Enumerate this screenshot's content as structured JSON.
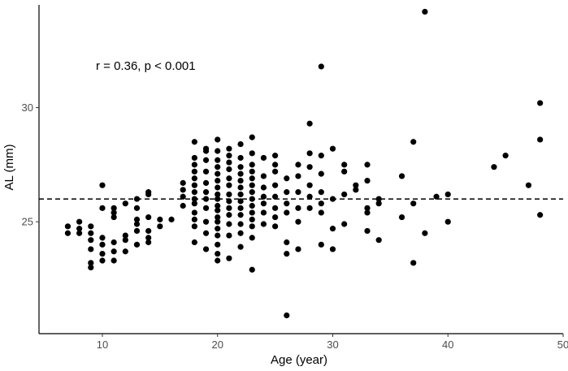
{
  "chart_data": {
    "type": "scatter",
    "title": "",
    "xlabel": "Age (year)",
    "ylabel": "AL (mm)",
    "xlim": [
      4.5,
      50
    ],
    "ylim": [
      20.1,
      34.5
    ],
    "xticks": [
      10,
      20,
      30,
      40,
      50
    ],
    "yticks": [
      25,
      30
    ],
    "xtick_labels": [
      "10",
      "20",
      "30",
      "40",
      "50"
    ],
    "ytick_labels": [
      "25",
      "30"
    ],
    "annotation": "r = 0.36, p < 0.001",
    "reference_line": {
      "y": 26.0,
      "style": "dashed"
    },
    "grid": false,
    "legend": "none",
    "marker_color": "#000000",
    "points": [
      [
        7,
        24.5
      ],
      [
        7,
        24.8
      ],
      [
        8,
        24.5
      ],
      [
        8,
        24.7
      ],
      [
        8,
        25.0
      ],
      [
        9,
        23.0
      ],
      [
        9,
        23.2
      ],
      [
        9,
        23.8
      ],
      [
        9,
        24.2
      ],
      [
        9,
        24.5
      ],
      [
        9,
        24.8
      ],
      [
        10,
        23.3
      ],
      [
        10,
        23.6
      ],
      [
        10,
        24.0
      ],
      [
        10,
        24.3
      ],
      [
        10,
        25.6
      ],
      [
        10,
        26.6
      ],
      [
        11,
        23.3
      ],
      [
        11,
        23.7
      ],
      [
        11,
        24.1
      ],
      [
        11,
        25.2
      ],
      [
        11,
        25.4
      ],
      [
        11,
        25.6
      ],
      [
        12,
        23.7
      ],
      [
        12,
        24.2
      ],
      [
        12,
        24.4
      ],
      [
        12,
        25.8
      ],
      [
        13,
        24.0
      ],
      [
        13,
        24.6
      ],
      [
        13,
        24.9
      ],
      [
        13,
        25.1
      ],
      [
        13,
        25.6
      ],
      [
        13,
        26.0
      ],
      [
        14,
        24.1
      ],
      [
        14,
        24.3
      ],
      [
        14,
        24.6
      ],
      [
        14,
        25.2
      ],
      [
        14,
        26.2
      ],
      [
        14,
        26.3
      ],
      [
        15,
        24.8
      ],
      [
        15,
        25.1
      ],
      [
        16,
        25.1
      ],
      [
        17,
        25.7
      ],
      [
        17,
        26.1
      ],
      [
        17,
        26.4
      ],
      [
        17,
        26.7
      ],
      [
        18,
        24.1
      ],
      [
        18,
        24.8
      ],
      [
        18,
        25.1
      ],
      [
        18,
        25.4
      ],
      [
        18,
        25.8
      ],
      [
        18,
        26.0
      ],
      [
        18,
        26.3
      ],
      [
        18,
        26.6
      ],
      [
        18,
        26.9
      ],
      [
        18,
        27.2
      ],
      [
        18,
        27.5
      ],
      [
        18,
        27.8
      ],
      [
        18,
        28.5
      ],
      [
        19,
        23.8
      ],
      [
        19,
        24.5
      ],
      [
        19,
        25.0
      ],
      [
        19,
        25.6
      ],
      [
        19,
        26.0
      ],
      [
        19,
        26.3
      ],
      [
        19,
        26.7
      ],
      [
        19,
        27.2
      ],
      [
        19,
        27.7
      ],
      [
        19,
        28.1
      ],
      [
        19,
        28.2
      ],
      [
        20,
        23.3
      ],
      [
        20,
        23.6
      ],
      [
        20,
        24.0
      ],
      [
        20,
        24.4
      ],
      [
        20,
        24.7
      ],
      [
        20,
        25.0
      ],
      [
        20,
        25.2
      ],
      [
        20,
        25.5
      ],
      [
        20,
        25.7
      ],
      [
        20,
        26.0
      ],
      [
        20,
        26.2
      ],
      [
        20,
        26.5
      ],
      [
        20,
        26.8
      ],
      [
        20,
        27.1
      ],
      [
        20,
        27.4
      ],
      [
        20,
        27.7
      ],
      [
        20,
        28.1
      ],
      [
        20,
        28.6
      ],
      [
        21,
        23.4
      ],
      [
        21,
        24.4
      ],
      [
        21,
        24.9
      ],
      [
        21,
        25.3
      ],
      [
        21,
        25.6
      ],
      [
        21,
        25.9
      ],
      [
        21,
        26.2
      ],
      [
        21,
        26.6
      ],
      [
        21,
        26.9
      ],
      [
        21,
        27.3
      ],
      [
        21,
        27.6
      ],
      [
        21,
        27.9
      ],
      [
        21,
        28.2
      ],
      [
        22,
        23.9
      ],
      [
        22,
        24.5
      ],
      [
        22,
        24.9
      ],
      [
        22,
        25.3
      ],
      [
        22,
        25.6
      ],
      [
        22,
        25.9
      ],
      [
        22,
        26.2
      ],
      [
        22,
        26.5
      ],
      [
        22,
        26.8
      ],
      [
        22,
        27.1
      ],
      [
        22,
        27.4
      ],
      [
        22,
        27.8
      ],
      [
        22,
        28.4
      ],
      [
        23,
        22.9
      ],
      [
        23,
        24.3
      ],
      [
        23,
        24.8
      ],
      [
        23,
        25.1
      ],
      [
        23,
        25.4
      ],
      [
        23,
        25.7
      ],
      [
        23,
        26.0
      ],
      [
        23,
        26.3
      ],
      [
        23,
        26.6
      ],
      [
        23,
        26.9
      ],
      [
        23,
        27.2
      ],
      [
        23,
        27.5
      ],
      [
        23,
        28.0
      ],
      [
        23,
        28.7
      ],
      [
        24,
        24.9
      ],
      [
        24,
        25.4
      ],
      [
        24,
        25.8
      ],
      [
        24,
        26.1
      ],
      [
        24,
        26.5
      ],
      [
        24,
        27.0
      ],
      [
        24,
        27.8
      ],
      [
        25,
        24.8
      ],
      [
        25,
        25.2
      ],
      [
        25,
        25.6
      ],
      [
        25,
        26.1
      ],
      [
        25,
        26.6
      ],
      [
        25,
        27.2
      ],
      [
        25,
        27.5
      ],
      [
        25,
        27.9
      ],
      [
        26,
        20.9
      ],
      [
        26,
        23.6
      ],
      [
        26,
        24.1
      ],
      [
        26,
        25.4
      ],
      [
        26,
        25.8
      ],
      [
        26,
        26.3
      ],
      [
        26,
        26.9
      ],
      [
        27,
        23.8
      ],
      [
        27,
        25.0
      ],
      [
        27,
        25.6
      ],
      [
        27,
        26.3
      ],
      [
        27,
        27.0
      ],
      [
        27,
        27.5
      ],
      [
        28,
        25.6
      ],
      [
        28,
        26.1
      ],
      [
        28,
        26.6
      ],
      [
        28,
        27.4
      ],
      [
        28,
        28.0
      ],
      [
        28,
        29.3
      ],
      [
        29,
        24.0
      ],
      [
        29,
        25.4
      ],
      [
        29,
        25.8
      ],
      [
        29,
        26.3
      ],
      [
        29,
        27.1
      ],
      [
        29,
        27.9
      ],
      [
        29,
        31.8
      ],
      [
        30,
        23.8
      ],
      [
        30,
        24.7
      ],
      [
        30,
        26.0
      ],
      [
        30,
        28.2
      ],
      [
        31,
        24.9
      ],
      [
        31,
        26.2
      ],
      [
        31,
        27.2
      ],
      [
        31,
        27.5
      ],
      [
        32,
        26.4
      ],
      [
        32,
        26.6
      ],
      [
        33,
        24.6
      ],
      [
        33,
        25.4
      ],
      [
        33,
        25.6
      ],
      [
        33,
        26.8
      ],
      [
        33,
        27.5
      ],
      [
        34,
        24.2
      ],
      [
        34,
        25.8
      ],
      [
        34,
        26.0
      ],
      [
        36,
        25.2
      ],
      [
        36,
        27.0
      ],
      [
        37,
        23.2
      ],
      [
        37,
        25.8
      ],
      [
        37,
        28.5
      ],
      [
        38,
        24.5
      ],
      [
        38,
        34.2
      ],
      [
        39,
        26.1
      ],
      [
        40,
        25.0
      ],
      [
        40,
        26.2
      ],
      [
        44,
        27.4
      ],
      [
        45,
        27.9
      ],
      [
        47,
        26.6
      ],
      [
        48,
        25.3
      ],
      [
        48,
        28.6
      ],
      [
        48,
        30.2
      ]
    ]
  }
}
